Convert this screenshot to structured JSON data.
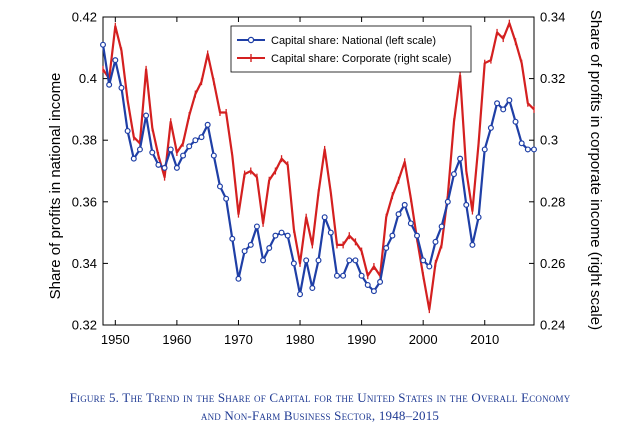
{
  "chart_data": {
    "type": "line",
    "title": "",
    "xlabel": "",
    "ylabel_left": "Share of profits in national income",
    "ylabel_right": "Share of profits in corporate income (right scale)",
    "xlim": [
      1948,
      2018
    ],
    "ylim_left": [
      0.32,
      0.42
    ],
    "ylim_right": [
      0.24,
      0.34
    ],
    "x_ticks": [
      "1950",
      "1960",
      "1970",
      "1980",
      "1990",
      "2000",
      "2010"
    ],
    "y_ticks_left": [
      "0.32",
      "0.34",
      "0.36",
      "0.38",
      "0.4",
      "0.42"
    ],
    "y_ticks_right": [
      "0.24",
      "0.26",
      "0.28",
      "0.3",
      "0.32",
      "0.34"
    ],
    "legend_position": "top-right",
    "x": [
      1948,
      1949,
      1950,
      1951,
      1952,
      1953,
      1954,
      1955,
      1956,
      1957,
      1958,
      1959,
      1960,
      1961,
      1962,
      1963,
      1964,
      1965,
      1966,
      1967,
      1968,
      1969,
      1970,
      1971,
      1972,
      1973,
      1974,
      1975,
      1976,
      1977,
      1978,
      1979,
      1980,
      1981,
      1982,
      1983,
      1984,
      1985,
      1986,
      1987,
      1988,
      1989,
      1990,
      1991,
      1992,
      1993,
      1994,
      1995,
      1996,
      1997,
      1998,
      1999,
      2000,
      2001,
      2002,
      2003,
      2004,
      2005,
      2006,
      2007,
      2008,
      2009,
      2010,
      2011,
      2012,
      2013,
      2014,
      2015,
      2016,
      2017,
      2018
    ],
    "series": [
      {
        "name": "Capital share: National (left scale)",
        "axis": "left",
        "color": "#1f3fa6",
        "values": [
          0.411,
          0.398,
          0.406,
          0.397,
          0.383,
          0.374,
          0.377,
          0.388,
          0.376,
          0.372,
          0.371,
          0.377,
          0.371,
          0.375,
          0.378,
          0.38,
          0.381,
          0.385,
          0.375,
          0.365,
          0.361,
          0.348,
          0.335,
          0.344,
          0.346,
          0.352,
          0.341,
          0.345,
          0.349,
          0.35,
          0.349,
          0.34,
          0.33,
          0.341,
          0.332,
          0.341,
          0.355,
          0.35,
          0.336,
          0.336,
          0.341,
          0.341,
          0.336,
          0.333,
          0.331,
          0.334,
          0.345,
          0.349,
          0.356,
          0.359,
          0.353,
          0.349,
          0.341,
          0.339,
          0.347,
          0.352,
          0.36,
          0.369,
          0.374,
          0.359,
          0.346,
          0.355,
          0.377,
          0.384,
          0.392,
          0.39,
          0.393,
          0.386,
          0.379,
          0.377,
          0.377
        ]
      },
      {
        "name": "Capital share: Corporate (right scale)",
        "axis": "right",
        "color": "#d42020",
        "values": [
          0.323,
          0.32,
          0.337,
          0.329,
          0.313,
          0.301,
          0.299,
          0.323,
          0.304,
          0.295,
          0.288,
          0.306,
          0.296,
          0.299,
          0.308,
          0.315,
          0.319,
          0.328,
          0.319,
          0.309,
          0.309,
          0.295,
          0.276,
          0.289,
          0.29,
          0.288,
          0.273,
          0.287,
          0.29,
          0.294,
          0.292,
          0.271,
          0.26,
          0.275,
          0.266,
          0.283,
          0.297,
          0.283,
          0.266,
          0.266,
          0.269,
          0.267,
          0.264,
          0.256,
          0.259,
          0.256,
          0.275,
          0.282,
          0.287,
          0.293,
          0.281,
          0.268,
          0.256,
          0.245,
          0.26,
          0.266,
          0.282,
          0.306,
          0.321,
          0.29,
          0.277,
          0.299,
          0.325,
          0.326,
          0.335,
          0.333,
          0.338,
          0.332,
          0.325,
          0.312,
          0.31
        ]
      }
    ]
  },
  "caption": {
    "line1": "Figure 5. The Trend in the Share of Capital for the United States in the Overall Economy",
    "line2": "and Non-Farm Business Sector, 1948–2015"
  }
}
